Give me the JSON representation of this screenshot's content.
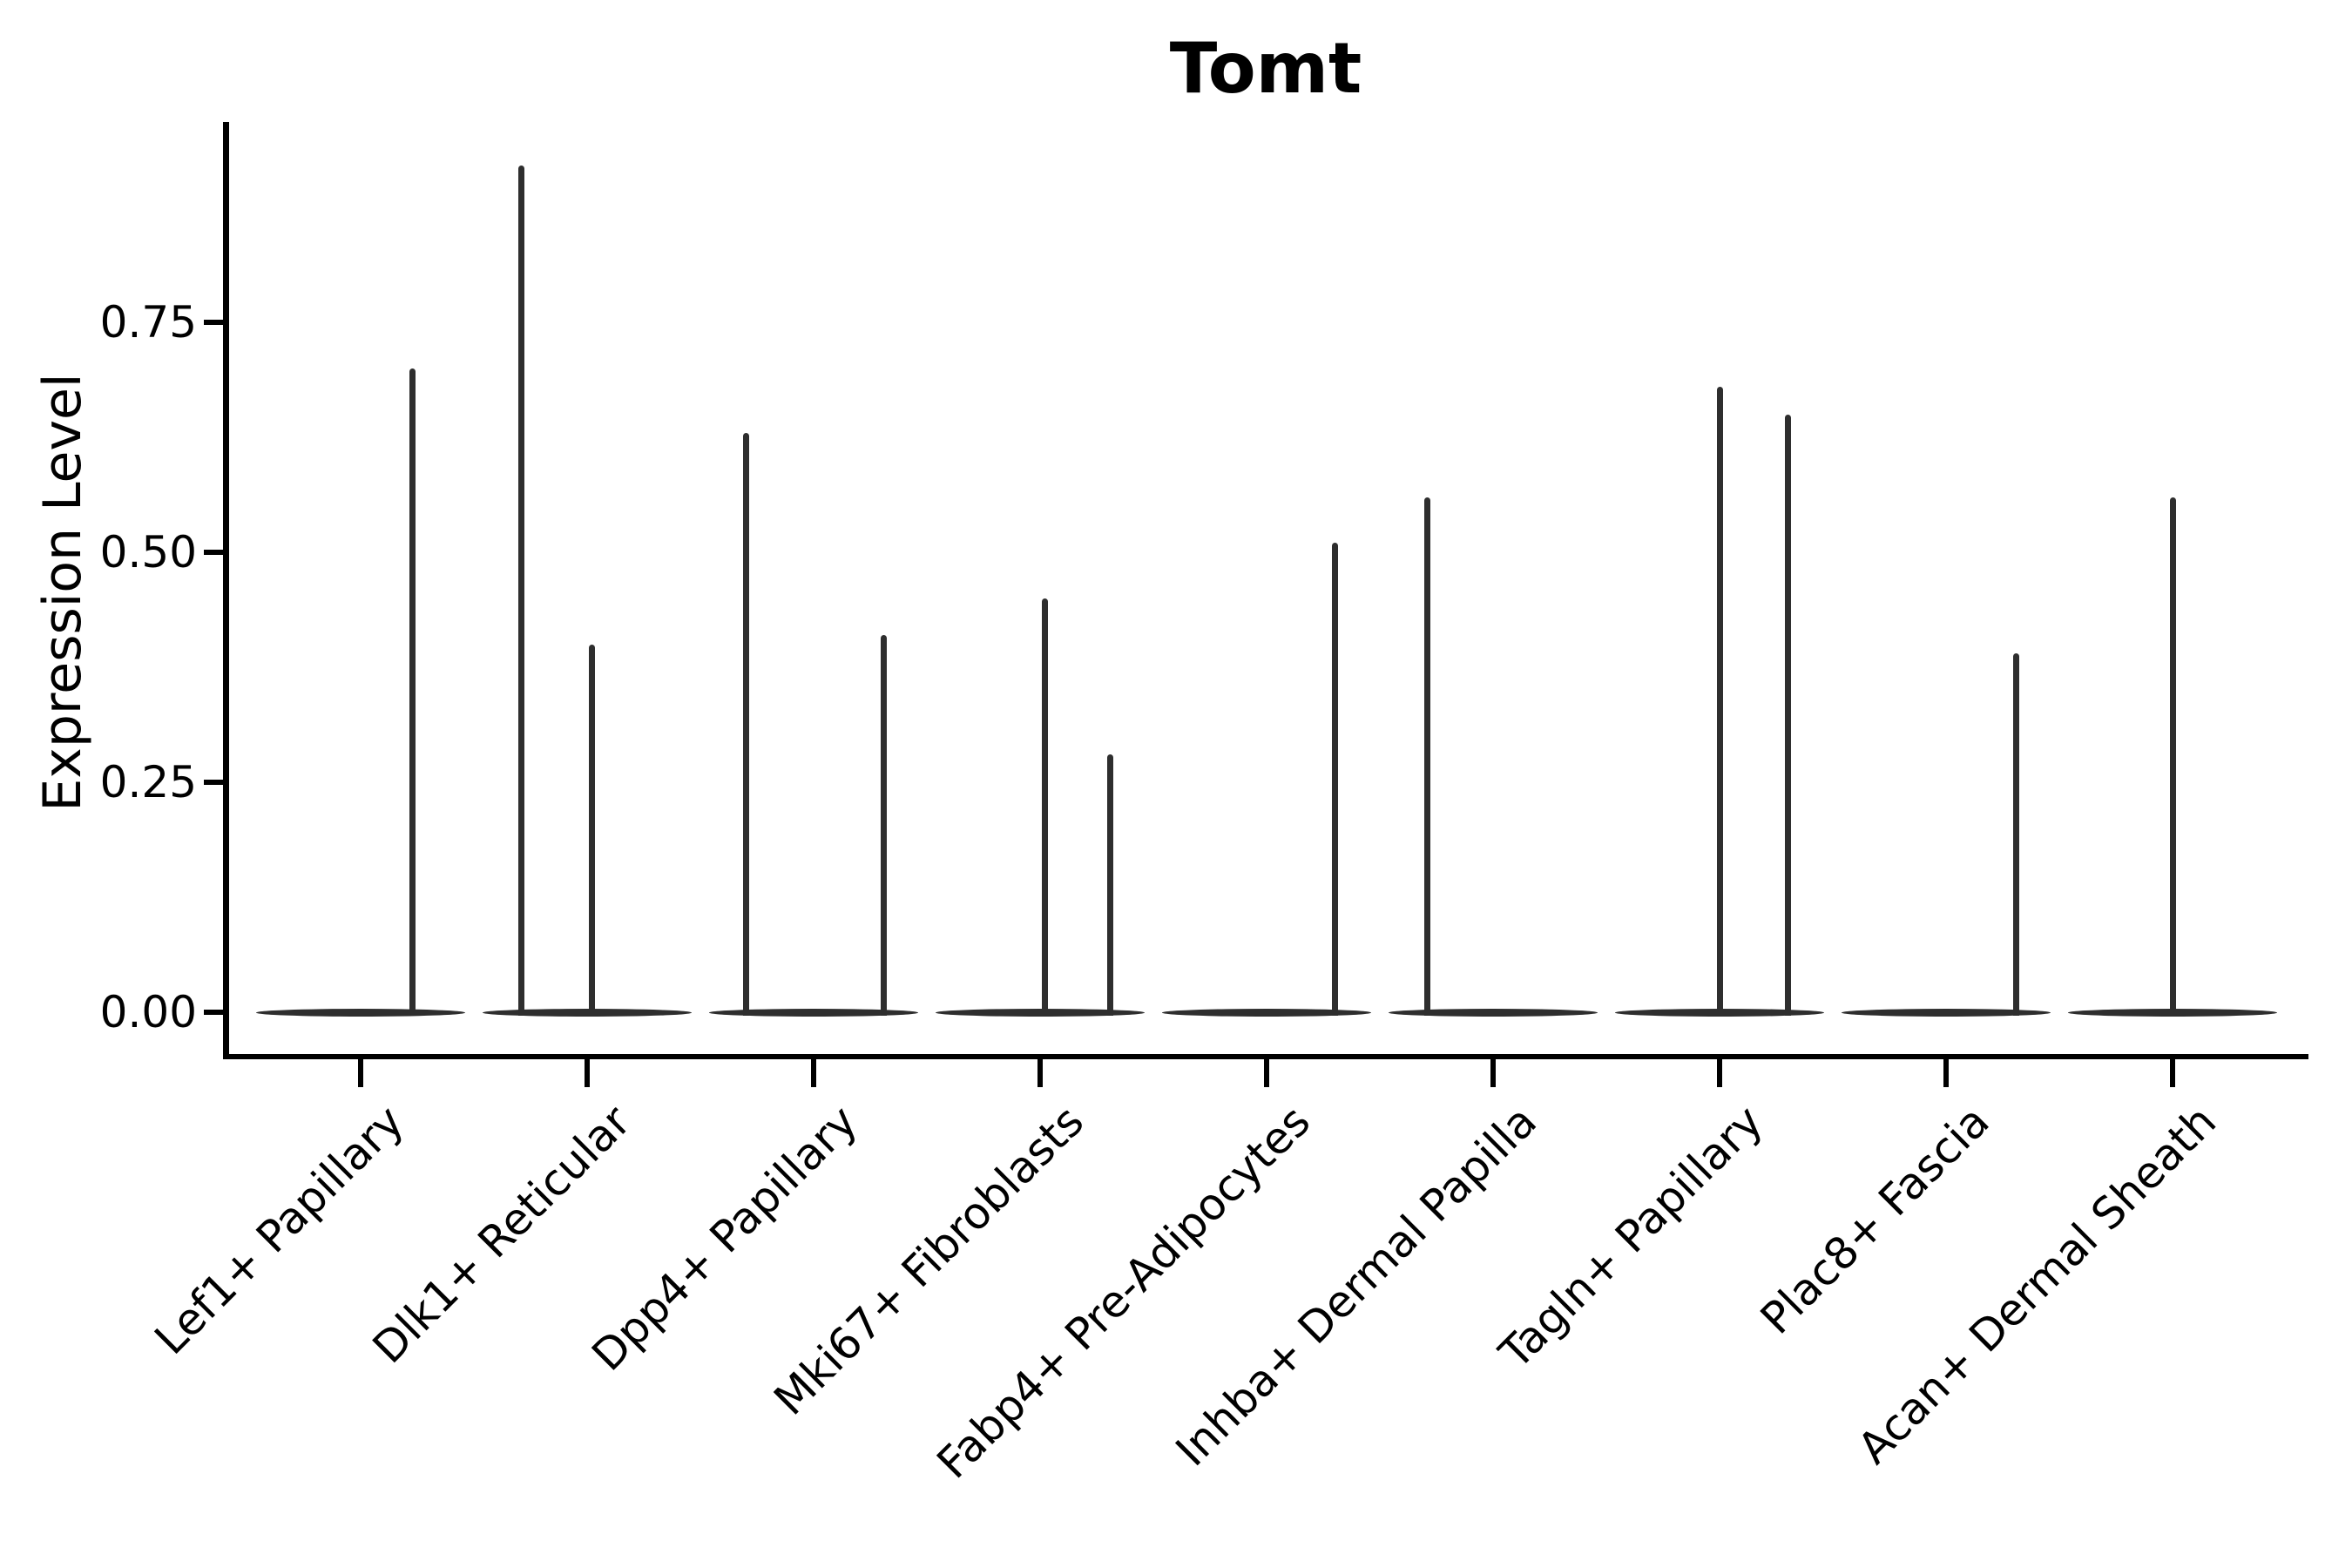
{
  "figure": {
    "title": "Tomt"
  },
  "chart_data": {
    "type": "violin",
    "title": "Tomt",
    "xlabel": "",
    "ylabel": "Expression Level",
    "y_axis": {
      "tick_labels": [
        "0.00",
        "0.25",
        "0.50",
        "0.75"
      ],
      "tick_values": [
        0.0,
        0.25,
        0.5,
        0.75
      ],
      "range": [
        -0.045,
        0.97
      ],
      "grid": false
    },
    "categories": [
      "Lef1+ Papillary",
      "Dlk1+ Reticular",
      "Dpp4+ Papillary",
      "Mki67+ Fibroblasts",
      "Fabp4+ Pre-Adipocytes",
      "Inhba+ Dermal Papilla",
      "Tagln+ Papillary",
      "Plac8+ Fascia",
      "Acan+ Dermal Sheath"
    ],
    "violins": [
      {
        "category": "Lef1+ Papillary",
        "baseline_value": 0,
        "spikes": [
          {
            "value": 0.7,
            "offset": 0.23
          }
        ]
      },
      {
        "category": "Dlk1+ Reticular",
        "baseline_value": 0,
        "spikes": [
          {
            "value": 0.92,
            "offset": -0.29
          },
          {
            "value": 0.4,
            "offset": 0.02
          }
        ]
      },
      {
        "category": "Dpp4+ Papillary",
        "baseline_value": 0,
        "spikes": [
          {
            "value": 0.63,
            "offset": -0.3
          },
          {
            "value": 0.41,
            "offset": 0.31
          }
        ]
      },
      {
        "category": "Mki67+ Fibroblasts",
        "baseline_value": 0,
        "spikes": [
          {
            "value": 0.45,
            "offset": 0.02
          },
          {
            "value": 0.28,
            "offset": 0.31
          }
        ]
      },
      {
        "category": "Fabp4+ Pre-Adipocytes",
        "baseline_value": 0,
        "spikes": [
          {
            "value": 0.51,
            "offset": 0.3
          }
        ]
      },
      {
        "category": "Inhba+ Dermal Papilla",
        "baseline_value": 0,
        "spikes": [
          {
            "value": 0.56,
            "offset": -0.29
          }
        ]
      },
      {
        "category": "Tagln+ Papillary",
        "baseline_value": 0,
        "spikes": [
          {
            "value": 0.68,
            "offset": 0.0
          },
          {
            "value": 0.65,
            "offset": 0.3
          }
        ]
      },
      {
        "category": "Plac8+ Fascia",
        "baseline_value": 0,
        "spikes": [
          {
            "value": 0.39,
            "offset": 0.31
          }
        ]
      },
      {
        "category": "Acan+ Dermal Sheath",
        "baseline_value": 0,
        "spikes": [
          {
            "value": 0.56,
            "offset": 0.0
          }
        ]
      }
    ],
    "style": {
      "violin_line_color": "#2e2e2e",
      "axis_color": "#000000",
      "background": "#ffffff",
      "legend": "none"
    }
  }
}
